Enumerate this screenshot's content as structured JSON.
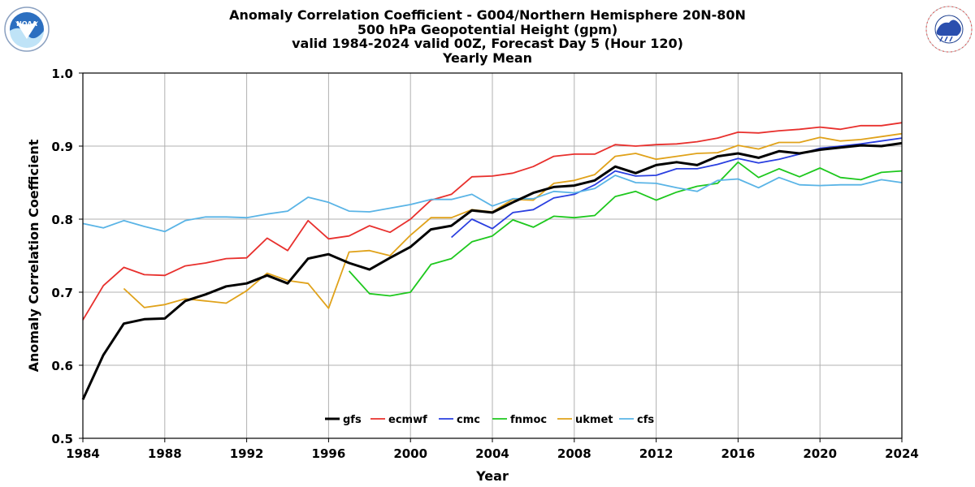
{
  "chart_data": {
    "type": "line",
    "title": [
      "Anomaly Correlation Coefficient - G004/Northern Hemisphere 20N-80N",
      "500 hPa Geopotential Height (gpm)",
      "valid 1984-2024 valid 00Z, Forecast Day 5 (Hour 120)",
      "Yearly Mean"
    ],
    "xlabel": "Year",
    "ylabel": "Anomaly Correlation Coefficient",
    "xlim": [
      1984,
      2024
    ],
    "ylim": [
      0.5,
      1.0
    ],
    "xticks": [
      "1984",
      "1988",
      "1992",
      "1996",
      "2000",
      "2004",
      "2008",
      "2012",
      "2016",
      "2020",
      "2024"
    ],
    "yticks": [
      "0.5",
      "0.6",
      "0.7",
      "0.8",
      "0.9",
      "1.0"
    ],
    "grid": true,
    "legend_placement": "bottom-center",
    "series": [
      {
        "name": "gfs",
        "color": "#000000",
        "x": [
          1984,
          1985,
          1986,
          1987,
          1988,
          1989,
          1990,
          1991,
          1992,
          1993,
          1994,
          1995,
          1996,
          1997,
          1998,
          1999,
          2000,
          2001,
          2002,
          2003,
          2004,
          2005,
          2006,
          2007,
          2008,
          2009,
          2010,
          2011,
          2012,
          2013,
          2014,
          2015,
          2016,
          2017,
          2018,
          2019,
          2020,
          2021,
          2022,
          2023,
          2024
        ],
        "y": [
          0.553,
          0.614,
          0.657,
          0.663,
          0.664,
          0.688,
          0.697,
          0.708,
          0.712,
          0.723,
          0.712,
          0.746,
          0.752,
          0.74,
          0.731,
          0.747,
          0.762,
          0.786,
          0.791,
          0.812,
          0.809,
          0.823,
          0.836,
          0.844,
          0.846,
          0.853,
          0.872,
          0.863,
          0.874,
          0.878,
          0.874,
          0.886,
          0.89,
          0.884,
          0.893,
          0.89,
          0.895,
          0.898,
          0.901,
          0.9,
          0.904
        ]
      },
      {
        "name": "ecmwf",
        "color": "#e8302d",
        "x": [
          1984,
          1985,
          1986,
          1987,
          1988,
          1989,
          1990,
          1991,
          1992,
          1993,
          1994,
          1995,
          1996,
          1997,
          1998,
          1999,
          2000,
          2001,
          2002,
          2003,
          2004,
          2005,
          2006,
          2007,
          2008,
          2009,
          2010,
          2011,
          2012,
          2013,
          2014,
          2015,
          2016,
          2017,
          2018,
          2019,
          2020,
          2021,
          2022,
          2023,
          2024
        ],
        "y": [
          0.662,
          0.709,
          0.734,
          0.724,
          0.723,
          0.736,
          0.74,
          0.746,
          0.747,
          0.774,
          0.757,
          0.798,
          0.773,
          0.777,
          0.791,
          0.782,
          0.8,
          0.826,
          0.834,
          0.858,
          0.859,
          0.863,
          0.872,
          0.886,
          0.889,
          0.889,
          0.902,
          0.9,
          0.902,
          0.903,
          0.906,
          0.911,
          0.919,
          0.918,
          0.921,
          0.923,
          0.926,
          0.923,
          0.928,
          0.928,
          0.932
        ]
      },
      {
        "name": "cmc",
        "color": "#2a3fe0",
        "x": [
          2002,
          2003,
          2004,
          2005,
          2006,
          2007,
          2008,
          2009,
          2010,
          2011,
          2012,
          2013,
          2014,
          2015,
          2016,
          2017,
          2018,
          2019,
          2020,
          2021,
          2022,
          2023,
          2024
        ],
        "y": [
          0.775,
          0.8,
          0.787,
          0.809,
          0.813,
          0.829,
          0.834,
          0.847,
          0.866,
          0.859,
          0.86,
          0.869,
          0.869,
          0.875,
          0.883,
          0.877,
          0.882,
          0.889,
          0.897,
          0.9,
          0.903,
          0.907,
          0.911
        ]
      },
      {
        "name": "fnmoc",
        "color": "#1ec81e",
        "x": [
          1997,
          1998,
          1999,
          2000,
          2001,
          2002,
          2003,
          2004,
          2005,
          2006,
          2007,
          2008,
          2009,
          2010,
          2011,
          2012,
          2013,
          2014,
          2015,
          2016,
          2017,
          2018,
          2019,
          2020,
          2021,
          2022,
          2023,
          2024
        ],
        "y": [
          0.729,
          0.698,
          0.695,
          0.7,
          0.738,
          0.746,
          0.769,
          0.777,
          0.799,
          0.789,
          0.804,
          0.802,
          0.805,
          0.831,
          0.838,
          0.826,
          0.837,
          0.845,
          0.849,
          0.878,
          0.857,
          0.869,
          0.858,
          0.87,
          0.857,
          0.854,
          0.864,
          0.866
        ]
      },
      {
        "name": "ukmet",
        "color": "#e0a21a",
        "x": [
          1986,
          1987,
          1988,
          1989,
          1990,
          1991,
          1992,
          1993,
          1994,
          1995,
          1996,
          1997,
          1998,
          1999,
          2000,
          2001,
          2002,
          2003,
          2004,
          2005,
          2006,
          2007,
          2008,
          2009,
          2010,
          2011,
          2012,
          2013,
          2014,
          2015,
          2016,
          2017,
          2018,
          2019,
          2020,
          2021,
          2022,
          2023,
          2024
        ],
        "y": [
          0.705,
          0.679,
          0.683,
          0.691,
          0.688,
          0.685,
          0.702,
          0.726,
          0.716,
          0.712,
          0.678,
          0.755,
          0.757,
          0.75,
          0.778,
          0.802,
          0.802,
          0.813,
          0.81,
          0.827,
          0.826,
          0.849,
          0.853,
          0.861,
          0.886,
          0.89,
          0.882,
          0.886,
          0.89,
          0.891,
          0.901,
          0.896,
          0.905,
          0.905,
          0.912,
          0.907,
          0.909,
          0.913,
          0.917
        ]
      },
      {
        "name": "cfs",
        "color": "#5ab4e6",
        "x": [
          1984,
          1985,
          1986,
          1987,
          1988,
          1989,
          1990,
          1991,
          1992,
          1993,
          1994,
          1995,
          1996,
          1997,
          1998,
          1999,
          2000,
          2001,
          2002,
          2003,
          2004,
          2005,
          2006,
          2007,
          2008,
          2009,
          2010,
          2011,
          2012,
          2013,
          2014,
          2015,
          2016,
          2017,
          2018,
          2019,
          2020,
          2021,
          2022,
          2023,
          2024
        ],
        "y": [
          0.794,
          0.788,
          0.798,
          0.79,
          0.783,
          0.798,
          0.803,
          0.803,
          0.802,
          0.807,
          0.811,
          0.83,
          0.823,
          0.811,
          0.81,
          0.815,
          0.82,
          0.827,
          0.827,
          0.834,
          0.818,
          0.828,
          0.828,
          0.838,
          0.836,
          0.842,
          0.86,
          0.85,
          0.849,
          0.843,
          0.838,
          0.853,
          0.855,
          0.843,
          0.857,
          0.847,
          0.846,
          0.847,
          0.847,
          0.854,
          0.85
        ]
      }
    ]
  }
}
